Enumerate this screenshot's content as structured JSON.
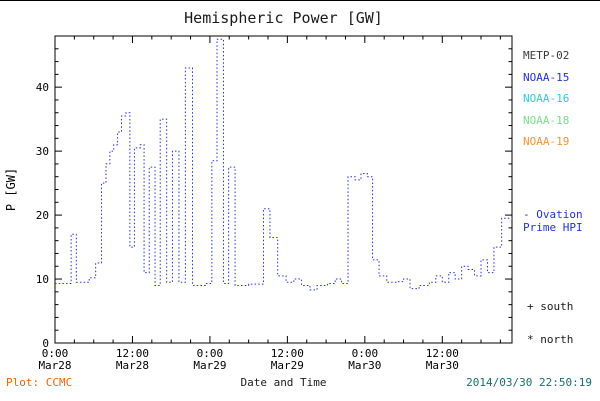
{
  "title": "Hemispheric Power [GW]",
  "y_axis_label": "P [GW]",
  "x_axis_label": "Date and Time",
  "footer": {
    "plot_credit": "Plot: CCMC",
    "timestamp": "2014/03/30 22:50:19"
  },
  "legend": {
    "satellites": [
      {
        "label": "METP-02",
        "color": "#3a3a3a"
      },
      {
        "label": "NOAA-15",
        "color": "#2233cc"
      },
      {
        "label": "NOAA-16",
        "color": "#33c7dd"
      },
      {
        "label": "NOAA-18",
        "color": "#7ddc8e"
      },
      {
        "label": "NOAA-19",
        "color": "#ee9440"
      }
    ],
    "ovation_line1": "- Ovation",
    "ovation_line2": "Prime HPI",
    "ovation_color": "#2233cc",
    "south_marker": "+ south",
    "north_marker": "* north"
  },
  "colors": {
    "line": "#2233cc",
    "axes": "#000000",
    "credit": "#dd6611",
    "timestamp": "#1a6b6b"
  },
  "chart_data": {
    "type": "line",
    "style": "dotted-step",
    "title": "Hemispheric Power [GW]",
    "xlabel": "Date and Time",
    "ylabel": "P [GW]",
    "grid": false,
    "legend_position": "right",
    "xlim_hours": [
      0,
      70.8
    ],
    "ylim": [
      0,
      48
    ],
    "y_ticks": [
      0,
      10,
      20,
      30,
      40
    ],
    "y_minor_step": 2,
    "x_minor_step_hours": 3,
    "x_ticks": [
      {
        "hour": 0,
        "time": "0:00",
        "date": "Mar28"
      },
      {
        "hour": 12,
        "time": "12:00",
        "date": "Mar28"
      },
      {
        "hour": 24,
        "time": "0:00",
        "date": "Mar29"
      },
      {
        "hour": 36,
        "time": "12:00",
        "date": "Mar29"
      },
      {
        "hour": 48,
        "time": "0:00",
        "date": "Mar30"
      },
      {
        "hour": 60,
        "time": "12:00",
        "date": "Mar30"
      }
    ],
    "series": [
      {
        "name": "Ovation Prime HPI",
        "color": "#2233cc",
        "points_hour_gw": [
          [
            0,
            9.3
          ],
          [
            2.5,
            17
          ],
          [
            3.3,
            9.5
          ],
          [
            5.3,
            10.2
          ],
          [
            6.3,
            12.5
          ],
          [
            7.2,
            25
          ],
          [
            7.9,
            28
          ],
          [
            8.5,
            30
          ],
          [
            9.1,
            31
          ],
          [
            9.7,
            33
          ],
          [
            10.3,
            35.5
          ],
          [
            11.0,
            36
          ],
          [
            11.6,
            15
          ],
          [
            12.3,
            30.5
          ],
          [
            13.2,
            31
          ],
          [
            13.8,
            11
          ],
          [
            14.6,
            27.5
          ],
          [
            15.5,
            9
          ],
          [
            16.3,
            35
          ],
          [
            17.3,
            9.5
          ],
          [
            18.2,
            30
          ],
          [
            19.2,
            9.5
          ],
          [
            20.2,
            43
          ],
          [
            21.3,
            9
          ],
          [
            23.3,
            9.3
          ],
          [
            24.3,
            28.5
          ],
          [
            25.1,
            47.5
          ],
          [
            26.1,
            9.3
          ],
          [
            26.9,
            27.5
          ],
          [
            27.9,
            9
          ],
          [
            30.0,
            9.2
          ],
          [
            32.3,
            21
          ],
          [
            33.3,
            16.5
          ],
          [
            34.5,
            10.5
          ],
          [
            35.8,
            9.5
          ],
          [
            37.0,
            10
          ],
          [
            38.2,
            9
          ],
          [
            39.5,
            8.3
          ],
          [
            40.6,
            9
          ],
          [
            42.2,
            9.3
          ],
          [
            43.4,
            10
          ],
          [
            44.4,
            9.3
          ],
          [
            45.4,
            26
          ],
          [
            46.5,
            25.5
          ],
          [
            47.4,
            26.5
          ],
          [
            48.4,
            26
          ],
          [
            49.2,
            13
          ],
          [
            50.2,
            10.5
          ],
          [
            51.4,
            9.5
          ],
          [
            53.0,
            9.6
          ],
          [
            54.0,
            10
          ],
          [
            55.0,
            8.5
          ],
          [
            56.4,
            9
          ],
          [
            58.0,
            9.5
          ],
          [
            59.0,
            10.5
          ],
          [
            60.0,
            9.5
          ],
          [
            61.0,
            11
          ],
          [
            62.0,
            10
          ],
          [
            63.0,
            12
          ],
          [
            64.0,
            11.5
          ],
          [
            65.0,
            10.5
          ],
          [
            66.0,
            13
          ],
          [
            67.0,
            11
          ],
          [
            68.0,
            15
          ],
          [
            69.2,
            19.5
          ]
        ]
      }
    ]
  }
}
